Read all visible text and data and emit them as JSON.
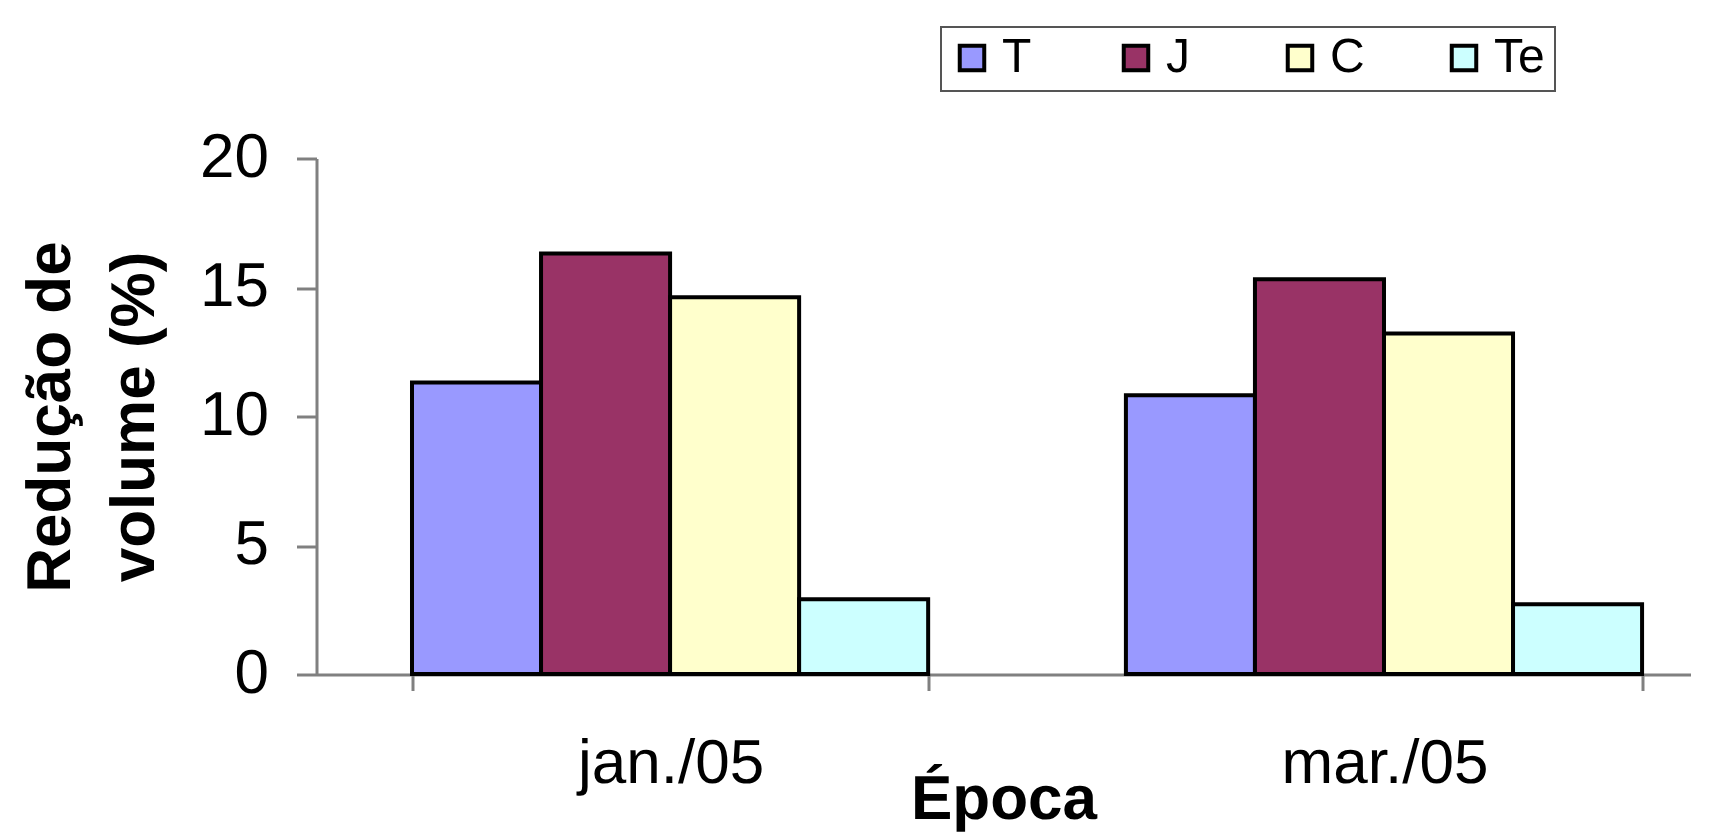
{
  "chart_data": {
    "type": "bar",
    "xlabel": "Época",
    "ylabel": "Redução de volume (%)",
    "categories": [
      "jan./05",
      "mar./05"
    ],
    "series": [
      {
        "name": "T",
        "color": "#9999ff",
        "values": [
          11.3,
          10.8
        ]
      },
      {
        "name": "J",
        "color": "#993366",
        "values": [
          16.3,
          15.3
        ]
      },
      {
        "name": "C",
        "color": "#ffffcc",
        "values": [
          14.6,
          13.2
        ]
      },
      {
        "name": "Te",
        "color": "#ccffff",
        "values": [
          2.9,
          2.7
        ]
      }
    ],
    "ylim": [
      0,
      20
    ],
    "yticks": [
      0,
      5,
      10,
      15,
      20
    ],
    "grid": false,
    "legend": "top right"
  }
}
